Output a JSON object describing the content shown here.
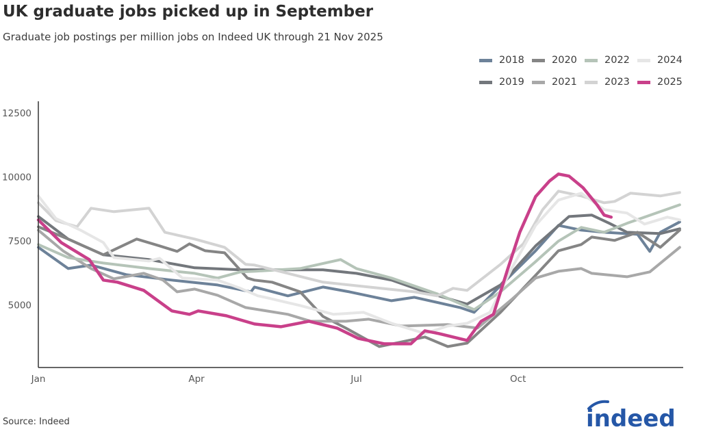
{
  "title": "UK graduate jobs picked up in September",
  "subtitle": "Graduate job postings per million jobs on Indeed UK through 21 Nov 2025",
  "source": "Source: Indeed",
  "logo_text": "indeed",
  "chart_data": {
    "type": "line",
    "title": "UK graduate jobs picked up in September",
    "xlabel": "",
    "ylabel": "",
    "x_unit": "day of year",
    "xlim": [
      1,
      368
    ],
    "ylim": [
      2550,
      12950
    ],
    "x_ticks": [
      {
        "value": 1,
        "label": "Jan"
      },
      {
        "value": 91,
        "label": "Apr"
      },
      {
        "value": 182,
        "label": "Jul"
      },
      {
        "value": 274,
        "label": "Oct"
      }
    ],
    "y_ticks": [
      {
        "value": 5000,
        "label": "5000"
      },
      {
        "value": 7500,
        "label": "7500"
      },
      {
        "value": 10000,
        "label": "10000"
      },
      {
        "value": 12500,
        "label": "12500"
      }
    ],
    "grid": false,
    "legend_position": "top-right",
    "series": [
      {
        "name": "2018",
        "color": "#6d8299",
        "x": [
          1,
          18,
          31,
          51,
          77,
          103,
          122,
          124,
          143,
          163,
          178,
          202,
          215,
          241,
          249,
          271,
          284,
          297,
          310,
          323,
          342,
          349,
          355,
          366
        ],
        "y": [
          7246,
          6417,
          6551,
          6177,
          5963,
          5775,
          5508,
          5695,
          5348,
          5695,
          5508,
          5160,
          5294,
          4893,
          4706,
          6230,
          7112,
          8102,
          7915,
          7834,
          7754,
          7086,
          7834,
          8236
        ]
      },
      {
        "name": "2019",
        "color": "#73777c",
        "x": [
          1,
          18,
          38,
          64,
          90,
          116,
          137,
          163,
          182,
          202,
          221,
          245,
          264,
          284,
          303,
          316,
          326,
          336,
          355,
          366
        ],
        "y": [
          8449,
          7567,
          6952,
          6765,
          6444,
          6364,
          6364,
          6364,
          6230,
          5963,
          5508,
          5027,
          5775,
          7300,
          8449,
          8503,
          8182,
          7834,
          7781,
          7968
        ]
      },
      {
        "name": "2020",
        "color": "#858585",
        "x": [
          1,
          18,
          38,
          57,
          70,
          80,
          87,
          96,
          107,
          120,
          124,
          134,
          150,
          163,
          176,
          195,
          208,
          221,
          234,
          245,
          264,
          284,
          297,
          310,
          316,
          329,
          342,
          355,
          366
        ],
        "y": [
          8048,
          7567,
          6952,
          7567,
          7300,
          7086,
          7380,
          7112,
          7032,
          6043,
          5963,
          5883,
          5508,
          4545,
          4091,
          3369,
          3556,
          3743,
          3369,
          3503,
          4706,
          6150,
          7112,
          7353,
          7647,
          7514,
          7834,
          7246,
          7915
        ]
      },
      {
        "name": "2021",
        "color": "#a8a8a8",
        "x": [
          1,
          15,
          31,
          44,
          61,
          72,
          80,
          90,
          103,
          119,
          143,
          156,
          176,
          189,
          208,
          234,
          251,
          271,
          284,
          297,
          310,
          316,
          336,
          349,
          366
        ],
        "y": [
          7915,
          7112,
          6417,
          6016,
          6230,
          5963,
          5508,
          5615,
          5374,
          4893,
          4626,
          4358,
          4358,
          4438,
          4171,
          4225,
          4091,
          5241,
          6043,
          6310,
          6417,
          6230,
          6096,
          6284,
          7246
        ]
      },
      {
        "name": "2022",
        "color": "#b5c4b8",
        "x": [
          1,
          18,
          38,
          64,
          90,
          103,
          116,
          124,
          150,
          173,
          182,
          202,
          228,
          249,
          264,
          284,
          297,
          310,
          323,
          336,
          366
        ],
        "y": [
          7353,
          6845,
          6631,
          6417,
          6230,
          6043,
          6284,
          6310,
          6417,
          6765,
          6417,
          6043,
          5428,
          4813,
          5508,
          6685,
          7487,
          8022,
          7834,
          8182,
          8904
        ]
      },
      {
        "name": "2023",
        "color": "#d3d3d3",
        "x": [
          1,
          11,
          23,
          31,
          44,
          64,
          73,
          90,
          107,
          119,
          124,
          143,
          163,
          189,
          215,
          228,
          237,
          245,
          264,
          277,
          288,
          297,
          310,
          323,
          329,
          338,
          355,
          366
        ],
        "y": [
          8984,
          8289,
          8048,
          8770,
          8637,
          8770,
          7834,
          7567,
          7246,
          6578,
          6551,
          6230,
          5883,
          5695,
          5508,
          5348,
          5642,
          5562,
          6578,
          7380,
          8717,
          9439,
          9252,
          8984,
          9038,
          9359,
          9252,
          9385
        ]
      },
      {
        "name": "2024",
        "color": "#e6e6e6",
        "x": [
          1,
          11,
          25,
          38,
          44,
          64,
          70,
          83,
          103,
          116,
          126,
          130,
          150,
          169,
          186,
          202,
          221,
          234,
          245,
          258,
          271,
          284,
          297,
          310,
          323,
          336,
          346,
          359,
          366
        ],
        "y": [
          9252,
          8369,
          7915,
          7433,
          6845,
          6711,
          6818,
          6043,
          5963,
          5642,
          5348,
          5294,
          4973,
          4626,
          4706,
          4278,
          3877,
          4171,
          4278,
          4706,
          6497,
          8102,
          9091,
          9359,
          8717,
          8583,
          8155,
          8423,
          8316
        ]
      },
      {
        "name": "2025",
        "color": "#c9408a",
        "x": [
          1,
          14,
          30,
          38,
          46,
          61,
          77,
          87,
          92,
          108,
          124,
          139,
          155,
          171,
          183,
          198,
          213,
          221,
          229,
          245,
          253,
          260,
          268,
          275,
          284,
          292,
          297,
          303,
          311,
          319,
          323,
          327
        ],
        "y": [
          8316,
          7433,
          6765,
          5963,
          5883,
          5562,
          4760,
          4626,
          4760,
          4572,
          4251,
          4144,
          4358,
          4091,
          3690,
          3476,
          3476,
          3984,
          3877,
          3610,
          4358,
          4626,
          6364,
          7834,
          9225,
          9840,
          10107,
          10027,
          9573,
          8904,
          8503,
          8423
        ]
      }
    ]
  }
}
